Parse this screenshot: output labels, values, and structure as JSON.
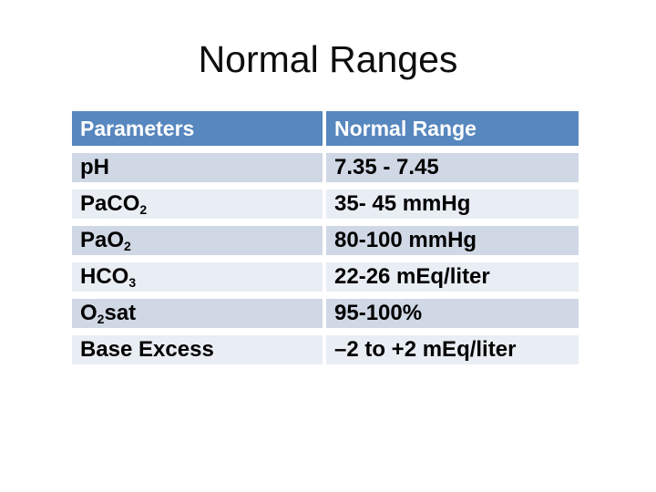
{
  "slide": {
    "title": "Normal Ranges"
  },
  "table": {
    "headers": [
      {
        "label": "Parameters"
      },
      {
        "label": "Normal Range"
      }
    ],
    "rows": [
      {
        "param_base": "pH",
        "param_sub": "",
        "param_suffix": "",
        "range": "7.35 - 7.45"
      },
      {
        "param_base": "PaCO",
        "param_sub": "2",
        "param_suffix": "",
        "range": "35- 45 mmHg"
      },
      {
        "param_base": "PaO",
        "param_sub": "2",
        "param_suffix": "",
        "range": "80-100 mmHg"
      },
      {
        "param_base": "HCO",
        "param_sub": "3",
        "param_suffix": "",
        "range": "22-26 mEq/liter"
      },
      {
        "param_base": "O",
        "param_sub": "2",
        "param_suffix": "sat",
        "range": "95-100%"
      },
      {
        "param_base": "Base Excess",
        "param_sub": "",
        "param_suffix": "",
        "range": "–2 to +2 mEq/liter"
      }
    ],
    "colors": {
      "header_bg": "#5787bf",
      "header_text": "#ffffff",
      "band_dark": "#d0d7e5",
      "band_light": "#e9edf4",
      "body_text": "#000000",
      "slide_background": "#ffffff"
    }
  }
}
